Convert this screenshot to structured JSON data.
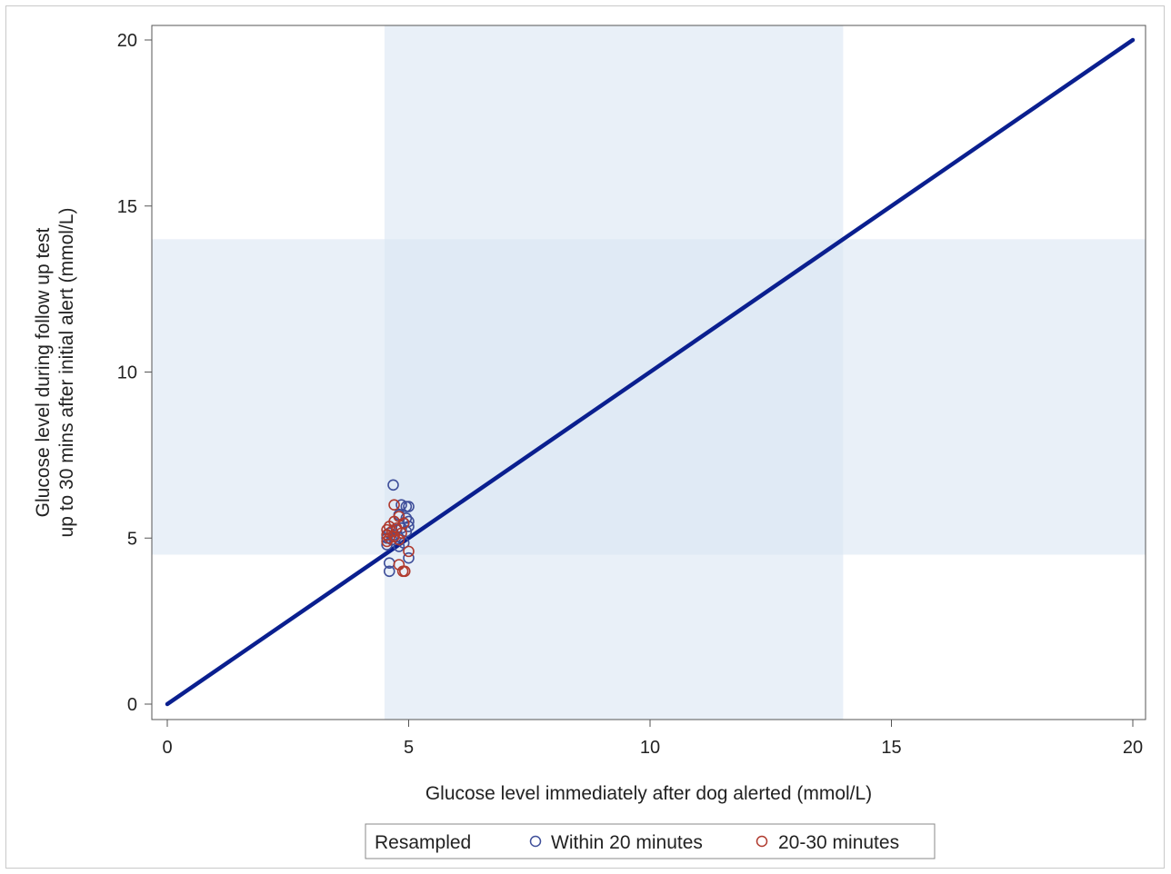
{
  "chart_data": {
    "type": "scatter",
    "title": "",
    "xlabel": "Glucose level immediately after dog alerted (mmol/L)",
    "ylabel_lines": [
      "Glucose level during follow up test",
      "up to 30 mins after initial alert (mmol/L)"
    ],
    "xlim": [
      0,
      20
    ],
    "ylim": [
      0,
      20
    ],
    "xticks": [
      0,
      5,
      10,
      15,
      20
    ],
    "yticks": [
      0,
      5,
      10,
      15,
      20
    ],
    "grid": false,
    "shaded_bands": [
      {
        "axis": "x",
        "from": 4.5,
        "to": 14,
        "color": "#dbe6f4"
      },
      {
        "axis": "y",
        "from": 4.5,
        "to": 14,
        "color": "#dbe6f4"
      }
    ],
    "reference_line": {
      "x": [
        0,
        20
      ],
      "y": [
        0,
        20
      ],
      "color": "#0a1f8f"
    },
    "series": [
      {
        "name": "Within 20 minutes",
        "color": "#3f4f9a",
        "points": [
          {
            "x": 4.68,
            "y": 6.6
          },
          {
            "x": 4.85,
            "y": 6.0
          },
          {
            "x": 4.95,
            "y": 5.95
          },
          {
            "x": 5.0,
            "y": 5.95
          },
          {
            "x": 4.8,
            "y": 5.7
          },
          {
            "x": 4.95,
            "y": 5.6
          },
          {
            "x": 5.0,
            "y": 5.5
          },
          {
            "x": 4.9,
            "y": 5.45
          },
          {
            "x": 5.0,
            "y": 5.35
          },
          {
            "x": 4.85,
            "y": 5.3
          },
          {
            "x": 4.75,
            "y": 5.25
          },
          {
            "x": 4.95,
            "y": 5.2
          },
          {
            "x": 4.6,
            "y": 5.15
          },
          {
            "x": 4.7,
            "y": 5.1
          },
          {
            "x": 4.55,
            "y": 5.0
          },
          {
            "x": 4.65,
            "y": 4.95
          },
          {
            "x": 4.9,
            "y": 4.85
          },
          {
            "x": 4.55,
            "y": 4.8
          },
          {
            "x": 4.8,
            "y": 4.75
          },
          {
            "x": 5.0,
            "y": 4.4
          },
          {
            "x": 4.6,
            "y": 4.25
          },
          {
            "x": 4.6,
            "y": 4.0
          }
        ]
      },
      {
        "name": "20-30 minutes",
        "color": "#b03a2e",
        "points": [
          {
            "x": 4.7,
            "y": 6.0
          },
          {
            "x": 4.8,
            "y": 5.65
          },
          {
            "x": 4.7,
            "y": 5.5
          },
          {
            "x": 4.9,
            "y": 5.45
          },
          {
            "x": 4.6,
            "y": 5.35
          },
          {
            "x": 4.75,
            "y": 5.3
          },
          {
            "x": 4.55,
            "y": 5.25
          },
          {
            "x": 4.65,
            "y": 5.2
          },
          {
            "x": 4.85,
            "y": 5.15
          },
          {
            "x": 4.55,
            "y": 5.1
          },
          {
            "x": 4.7,
            "y": 5.05
          },
          {
            "x": 4.6,
            "y": 5.0
          },
          {
            "x": 4.8,
            "y": 4.95
          },
          {
            "x": 4.55,
            "y": 4.9
          },
          {
            "x": 5.0,
            "y": 4.6
          },
          {
            "x": 4.8,
            "y": 4.2
          },
          {
            "x": 4.88,
            "y": 4.0
          },
          {
            "x": 4.92,
            "y": 4.0
          }
        ]
      }
    ],
    "legend": {
      "title": "Resampled",
      "position": "bottom-center"
    }
  }
}
